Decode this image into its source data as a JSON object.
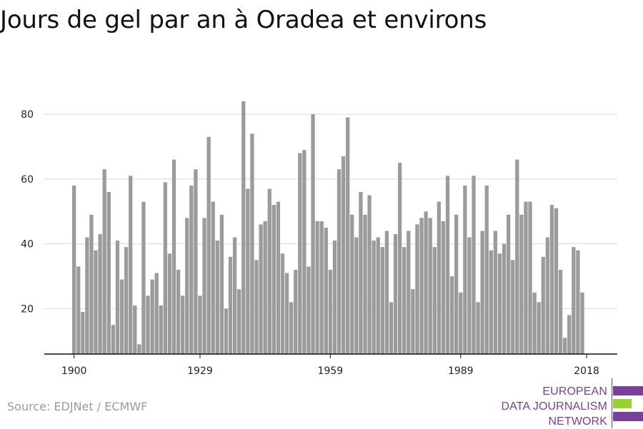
{
  "title": "Jours de gel par an à Oradea et environs",
  "source": "Source: EDJNet / ECMWF",
  "brand": {
    "lines": [
      "EUROPEAN",
      "DATA JOURNALISM",
      "NETWORK"
    ],
    "colors": {
      "text": "#7a3f98",
      "bar_purple": "#7a3f98",
      "bar_green": "#9ad22d"
    }
  },
  "chart_data": {
    "type": "bar",
    "x_start": 1900,
    "x_end": 2018,
    "xticks": [
      1900,
      1929,
      1959,
      1989,
      2018
    ],
    "yticks": [
      20,
      40,
      60,
      80
    ],
    "ylim": [
      6,
      87
    ],
    "grid": true,
    "bar_color": "#9b9b9b",
    "values": [
      58,
      33,
      19,
      42,
      49,
      38,
      43,
      63,
      56,
      15,
      41,
      29,
      39,
      61,
      21,
      9,
      53,
      24,
      29,
      31,
      21,
      59,
      37,
      66,
      32,
      24,
      48,
      58,
      63,
      24,
      48,
      73,
      53,
      41,
      49,
      20,
      36,
      42,
      26,
      84,
      57,
      74,
      35,
      46,
      47,
      57,
      52,
      53,
      37,
      31,
      22,
      32,
      68,
      69,
      33,
      80,
      47,
      47,
      45,
      32,
      41,
      63,
      67,
      79,
      49,
      42,
      56,
      49,
      55,
      41,
      42,
      39,
      44,
      22,
      43,
      65,
      39,
      44,
      26,
      46,
      48,
      50,
      48,
      39,
      53,
      47,
      61,
      30,
      49,
      25,
      58,
      42,
      61,
      22,
      44,
      58,
      38,
      44,
      37,
      40,
      49,
      35,
      66,
      49,
      53,
      53,
      25,
      22,
      36,
      42,
      52,
      51,
      32,
      11,
      18,
      39,
      38,
      25
    ]
  }
}
